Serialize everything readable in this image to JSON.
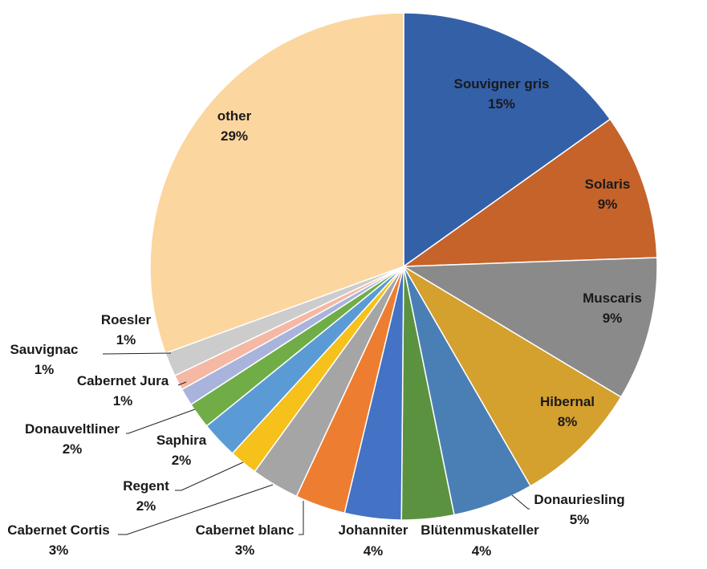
{
  "chart_data": {
    "type": "pie",
    "title": "",
    "colors": {
      "Souvigner gris": "#3460a8",
      "Solaris": "#c5632a",
      "Muscaris": "#8a8a8a",
      "Hibernal": "#d4a02e",
      "Donauriesling": "#4a7fb5",
      "Johanniter": "#5b9240",
      "Blütenmuskateller": "#4472c4",
      "Cabernet blanc": "#ed7d31",
      "Cabernet Cortis": "#a5a5a5",
      "Regent": "#f5c11a",
      "Saphira": "#5b9bd5",
      "Donauveltliner": "#70ad47",
      "Cabernet Jura": "#a9b4dc",
      "Sauvignac": "#f4b8a4",
      "Roesler": "#cccccc",
      "other": "#fcd69f"
    },
    "slices": [
      {
        "name": "Souvigner gris",
        "label": "Souvigner gris",
        "value": 15,
        "pct": "15%"
      },
      {
        "name": "Solaris",
        "label": "Solaris",
        "value": 9,
        "pct": "9%"
      },
      {
        "name": "Muscaris",
        "label": "Muscaris",
        "value": 9,
        "pct": "9%"
      },
      {
        "name": "Hibernal",
        "label": "Hibernal",
        "value": 8,
        "pct": "8%"
      },
      {
        "name": "Donauriesling",
        "label": "Donauriesling",
        "value": 5,
        "pct": "5%"
      },
      {
        "name": "Johanniter",
        "label": "Johanniter",
        "value": 4,
        "pct": "4%"
      },
      {
        "name": "Blütenmuskateller",
        "label": "Blütenmuskateller",
        "value": 4,
        "pct": "4%"
      },
      {
        "name": "Cabernet blanc",
        "label": "Cabernet blanc",
        "value": 3,
        "pct": "3%"
      },
      {
        "name": "Cabernet Cortis",
        "label": "Cabernet Cortis",
        "value": 3,
        "pct": "3%"
      },
      {
        "name": "Regent",
        "label": "Regent",
        "value": 2,
        "pct": "2%"
      },
      {
        "name": "Saphira",
        "label": "Saphira",
        "value": 2,
        "pct": "2%"
      },
      {
        "name": "Donauveltliner",
        "label": "Donauveltliner",
        "value": 2,
        "pct": "2%"
      },
      {
        "name": "Cabernet Jura",
        "label": "Cabernet Jura",
        "value": 1,
        "pct": "1%"
      },
      {
        "name": "Sauvignac",
        "label": "Sauvignac",
        "value": 1,
        "pct": "1%"
      },
      {
        "name": "Roesler",
        "label": "Roesler",
        "value": 1,
        "pct": "1%"
      },
      {
        "name": "other",
        "label": "other",
        "value": 29,
        "pct": "29%"
      }
    ]
  }
}
